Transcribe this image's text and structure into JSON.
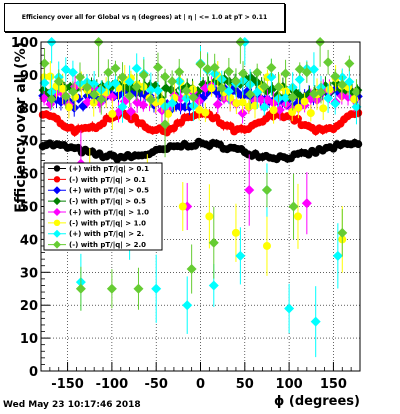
{
  "title": "Efficiency over all for Global vs η (degrees) at | η | <= 1.0 at pT > 0.11",
  "timestamp": "Wed May 23 10:17:46 2018",
  "chart_data": {
    "type": "scatter",
    "xlabel": "ϕ (degrees)",
    "ylabel": "Efficiency over all (%)",
    "xlim": [
      -180,
      180
    ],
    "ylim": [
      0,
      100
    ],
    "x_ticks": [
      -150,
      -100,
      -50,
      0,
      50,
      100,
      150
    ],
    "y_ticks": [
      0,
      10,
      20,
      30,
      40,
      50,
      60,
      70,
      80,
      90,
      100
    ],
    "grid": true,
    "legend_position": "center-left",
    "series": [
      {
        "name": "(+) with pT/|q| > 0.1",
        "color": "#000000",
        "marker": "circle",
        "profile": "black"
      },
      {
        "name": "(-) with pT/|q| > 0.1",
        "color": "#ff0000",
        "marker": "circle",
        "profile": "red"
      },
      {
        "name": "(+) with pT/|q| > 0.5",
        "color": "#0000ff",
        "marker": "diamond",
        "profile": "blue"
      },
      {
        "name": "(-) with pT/|q| > 0.5",
        "color": "#008000",
        "marker": "diamond",
        "profile": "green"
      },
      {
        "name": "(+) with pT/|q| > 1.0",
        "color": "#ff00ff",
        "marker": "diamond",
        "profile": "magenta"
      },
      {
        "name": "(-) with pT/|q| > 1.0",
        "color": "#ffff00",
        "marker": "circle",
        "profile": "yellow"
      },
      {
        "name": "(+) with pT/|q| > 2.",
        "color": "#00ffff",
        "marker": "diamond",
        "profile": "cyan"
      },
      {
        "name": "(-) with pT/|q| > 2.0",
        "color": "#66cc33",
        "marker": "diamond",
        "profile": "lightgreen"
      }
    ]
  }
}
